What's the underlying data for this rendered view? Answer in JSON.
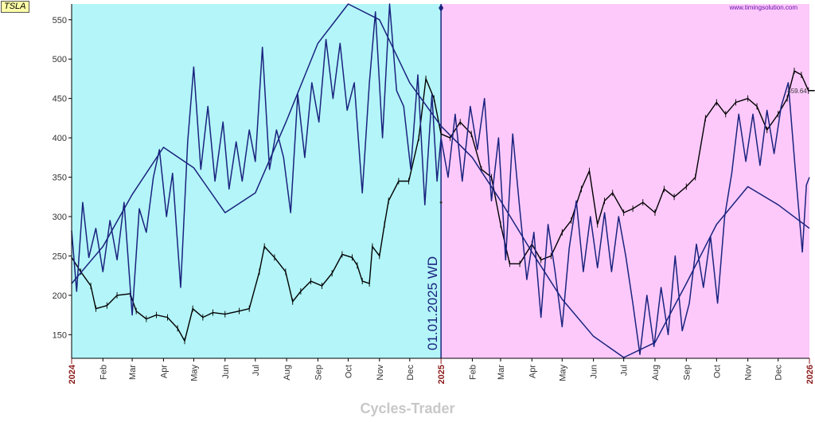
{
  "ticker": "TSLA",
  "watermark": "www.timingsolution.com",
  "footer": "Cycles-Trader",
  "colors": {
    "history_bg": "#b3f5f8",
    "projection_bg": "#fdc9fb",
    "price": "#000000",
    "cycle": "#1a237e",
    "divider": "#1a237e",
    "year_label": "#8b1a1a",
    "watermark": "#6a0dad"
  },
  "chart_data": {
    "type": "line",
    "title": "",
    "xlabel": "",
    "ylabel": "",
    "x_range": [
      "2024-01-01",
      "2026-01-01"
    ],
    "ylim": [
      120,
      570
    ],
    "grid": false,
    "y_ticks": [
      150,
      200,
      250,
      300,
      350,
      400,
      450,
      500,
      550
    ],
    "x_ticks": [
      {
        "label": "2024",
        "date": "2024-01-01",
        "year": true
      },
      {
        "label": "Feb",
        "date": "2024-02-01",
        "year": false
      },
      {
        "label": "Mar",
        "date": "2024-03-01",
        "year": false
      },
      {
        "label": "Apr",
        "date": "2024-04-01",
        "year": false
      },
      {
        "label": "May",
        "date": "2024-05-01",
        "year": false
      },
      {
        "label": "Jun",
        "date": "2024-06-01",
        "year": false
      },
      {
        "label": "Jul",
        "date": "2024-07-01",
        "year": false
      },
      {
        "label": "Aug",
        "date": "2024-08-01",
        "year": false
      },
      {
        "label": "Sep",
        "date": "2024-09-01",
        "year": false
      },
      {
        "label": "Oct",
        "date": "2024-10-01",
        "year": false
      },
      {
        "label": "Nov",
        "date": "2024-11-01",
        "year": false
      },
      {
        "label": "Dec",
        "date": "2024-12-01",
        "year": false
      },
      {
        "label": "2025",
        "date": "2025-01-01",
        "year": true
      },
      {
        "label": "Feb",
        "date": "2025-02-01",
        "year": false
      },
      {
        "label": "Mar",
        "date": "2025-03-01",
        "year": false
      },
      {
        "label": "Apr",
        "date": "2025-04-01",
        "year": false
      },
      {
        "label": "May",
        "date": "2025-05-01",
        "year": false
      },
      {
        "label": "Jun",
        "date": "2025-06-01",
        "year": false
      },
      {
        "label": "Jul",
        "date": "2025-07-01",
        "year": false
      },
      {
        "label": "Aug",
        "date": "2025-08-01",
        "year": false
      },
      {
        "label": "Sep",
        "date": "2025-09-01",
        "year": false
      },
      {
        "label": "Oct",
        "date": "2025-10-01",
        "year": false
      },
      {
        "label": "Nov",
        "date": "2025-11-01",
        "year": false
      },
      {
        "label": "Dec",
        "date": "2025-12-01",
        "year": false
      },
      {
        "label": "2026",
        "date": "2026-01-01",
        "year": true
      }
    ],
    "divider": {
      "date": "2025-01-01",
      "label": "01.01.2025 WD"
    },
    "last_price_label": "459.64",
    "series": [
      {
        "kind": "price",
        "style": "bars",
        "points": [
          [
            "2024-01-01",
            248
          ],
          [
            "2024-01-10",
            230
          ],
          [
            "2024-01-20",
            212
          ],
          [
            "2024-01-25",
            183
          ],
          [
            "2024-02-05",
            187
          ],
          [
            "2024-02-15",
            200
          ],
          [
            "2024-02-28",
            202
          ],
          [
            "2024-03-05",
            180
          ],
          [
            "2024-03-15",
            170
          ],
          [
            "2024-03-25",
            175
          ],
          [
            "2024-04-05",
            172
          ],
          [
            "2024-04-15",
            158
          ],
          [
            "2024-04-22",
            142
          ],
          [
            "2024-04-30",
            183
          ],
          [
            "2024-05-10",
            172
          ],
          [
            "2024-05-20",
            178
          ],
          [
            "2024-06-01",
            176
          ],
          [
            "2024-06-15",
            180
          ],
          [
            "2024-06-25",
            183
          ],
          [
            "2024-07-05",
            230
          ],
          [
            "2024-07-10",
            262
          ],
          [
            "2024-07-20",
            248
          ],
          [
            "2024-07-31",
            230
          ],
          [
            "2024-08-07",
            192
          ],
          [
            "2024-08-15",
            205
          ],
          [
            "2024-08-25",
            218
          ],
          [
            "2024-09-05",
            212
          ],
          [
            "2024-09-15",
            228
          ],
          [
            "2024-09-25",
            252
          ],
          [
            "2024-10-05",
            248
          ],
          [
            "2024-10-10",
            238
          ],
          [
            "2024-10-15",
            218
          ],
          [
            "2024-10-22",
            215
          ],
          [
            "2024-10-25",
            262
          ],
          [
            "2024-11-01",
            250
          ],
          [
            "2024-11-06",
            290
          ],
          [
            "2024-11-10",
            320
          ],
          [
            "2024-11-20",
            345
          ],
          [
            "2024-11-30",
            345
          ],
          [
            "2024-12-10",
            400
          ],
          [
            "2024-12-17",
            475
          ],
          [
            "2024-12-25",
            450
          ],
          [
            "2025-01-01",
            405
          ],
          [
            "2025-01-10",
            400
          ],
          [
            "2025-01-20",
            420
          ],
          [
            "2025-01-31",
            405
          ],
          [
            "2025-02-10",
            360
          ],
          [
            "2025-02-20",
            350
          ],
          [
            "2025-03-01",
            290
          ],
          [
            "2025-03-10",
            240
          ],
          [
            "2025-03-20",
            240
          ],
          [
            "2025-04-01",
            265
          ],
          [
            "2025-04-10",
            245
          ],
          [
            "2025-04-20",
            250
          ],
          [
            "2025-05-01",
            280
          ],
          [
            "2025-05-10",
            295
          ],
          [
            "2025-05-20",
            335
          ],
          [
            "2025-05-28",
            358
          ],
          [
            "2025-06-05",
            290
          ],
          [
            "2025-06-12",
            320
          ],
          [
            "2025-06-20",
            330
          ],
          [
            "2025-07-01",
            305
          ],
          [
            "2025-07-10",
            310
          ],
          [
            "2025-07-20",
            318
          ],
          [
            "2025-08-01",
            305
          ],
          [
            "2025-08-10",
            335
          ],
          [
            "2025-08-20",
            325
          ],
          [
            "2025-09-01",
            338
          ],
          [
            "2025-09-10",
            350
          ],
          [
            "2025-09-20",
            425
          ],
          [
            "2025-10-01",
            445
          ],
          [
            "2025-10-10",
            430
          ],
          [
            "2025-10-20",
            445
          ],
          [
            "2025-11-01",
            450
          ],
          [
            "2025-11-10",
            440
          ],
          [
            "2025-11-20",
            410
          ],
          [
            "2025-12-01",
            430
          ],
          [
            "2025-12-10",
            450
          ],
          [
            "2025-12-17",
            485
          ],
          [
            "2025-12-24",
            480
          ],
          [
            "2025-12-31",
            460
          ]
        ]
      },
      {
        "kind": "cycle_long",
        "style": "line",
        "points": [
          [
            "2024-01-01",
            215
          ],
          [
            "2024-02-01",
            262
          ],
          [
            "2024-03-01",
            328
          ],
          [
            "2024-04-01",
            388
          ],
          [
            "2024-05-01",
            362
          ],
          [
            "2024-06-01",
            305
          ],
          [
            "2024-07-01",
            330
          ],
          [
            "2024-08-01",
            422
          ],
          [
            "2024-09-01",
            520
          ],
          [
            "2024-10-01",
            570
          ],
          [
            "2024-11-01",
            550
          ],
          [
            "2024-12-01",
            470
          ],
          [
            "2025-01-01",
            415
          ],
          [
            "2025-02-01",
            375
          ],
          [
            "2025-03-01",
            320
          ],
          [
            "2025-04-01",
            255
          ],
          [
            "2025-05-01",
            195
          ],
          [
            "2025-06-01",
            148
          ],
          [
            "2025-07-01",
            121
          ],
          [
            "2025-08-01",
            140
          ],
          [
            "2025-09-01",
            215
          ],
          [
            "2025-10-01",
            290
          ],
          [
            "2025-11-01",
            338
          ],
          [
            "2025-12-01",
            315
          ],
          [
            "2026-01-01",
            285
          ]
        ]
      },
      {
        "kind": "cycle_short",
        "style": "line",
        "points": [
          [
            "2024-01-01",
            282
          ],
          [
            "2024-01-06",
            205
          ],
          [
            "2024-01-12",
            318
          ],
          [
            "2024-01-18",
            248
          ],
          [
            "2024-01-25",
            285
          ],
          [
            "2024-02-01",
            230
          ],
          [
            "2024-02-08",
            295
          ],
          [
            "2024-02-15",
            245
          ],
          [
            "2024-02-22",
            318
          ],
          [
            "2024-03-01",
            175
          ],
          [
            "2024-03-08",
            310
          ],
          [
            "2024-03-15",
            280
          ],
          [
            "2024-03-22",
            350
          ],
          [
            "2024-03-28",
            385
          ],
          [
            "2024-04-04",
            300
          ],
          [
            "2024-04-10",
            355
          ],
          [
            "2024-04-18",
            210
          ],
          [
            "2024-04-25",
            395
          ],
          [
            "2024-05-01",
            490
          ],
          [
            "2024-05-08",
            360
          ],
          [
            "2024-05-15",
            440
          ],
          [
            "2024-05-22",
            345
          ],
          [
            "2024-05-30",
            420
          ],
          [
            "2024-06-05",
            335
          ],
          [
            "2024-06-12",
            395
          ],
          [
            "2024-06-18",
            345
          ],
          [
            "2024-06-25",
            410
          ],
          [
            "2024-07-01",
            370
          ],
          [
            "2024-07-08",
            515
          ],
          [
            "2024-07-15",
            360
          ],
          [
            "2024-07-22",
            410
          ],
          [
            "2024-07-29",
            375
          ],
          [
            "2024-08-05",
            305
          ],
          [
            "2024-08-12",
            455
          ],
          [
            "2024-08-19",
            375
          ],
          [
            "2024-08-26",
            470
          ],
          [
            "2024-09-02",
            420
          ],
          [
            "2024-09-09",
            525
          ],
          [
            "2024-09-16",
            450
          ],
          [
            "2024-09-23",
            520
          ],
          [
            "2024-09-30",
            435
          ],
          [
            "2024-10-07",
            470
          ],
          [
            "2024-10-15",
            330
          ],
          [
            "2024-10-22",
            470
          ],
          [
            "2024-10-28",
            560
          ],
          [
            "2024-11-04",
            400
          ],
          [
            "2024-11-11",
            570
          ],
          [
            "2024-11-18",
            460
          ],
          [
            "2024-11-25",
            440
          ],
          [
            "2024-12-02",
            360
          ],
          [
            "2024-12-09",
            480
          ],
          [
            "2024-12-16",
            315
          ],
          [
            "2024-12-23",
            455
          ],
          [
            "2024-12-28",
            345
          ],
          [
            "2025-01-01",
            400
          ],
          [
            "2025-01-08",
            350
          ],
          [
            "2025-01-15",
            430
          ],
          [
            "2025-01-22",
            345
          ],
          [
            "2025-01-30",
            440
          ],
          [
            "2025-02-06",
            385
          ],
          [
            "2025-02-13",
            450
          ],
          [
            "2025-02-20",
            320
          ],
          [
            "2025-02-27",
            400
          ],
          [
            "2025-03-06",
            245
          ],
          [
            "2025-03-13",
            405
          ],
          [
            "2025-03-20",
            310
          ],
          [
            "2025-03-27",
            220
          ],
          [
            "2025-04-03",
            280
          ],
          [
            "2025-04-10",
            172
          ],
          [
            "2025-04-17",
            290
          ],
          [
            "2025-04-24",
            230
          ],
          [
            "2025-05-01",
            160
          ],
          [
            "2025-05-08",
            260
          ],
          [
            "2025-05-15",
            320
          ],
          [
            "2025-05-22",
            230
          ],
          [
            "2025-05-29",
            300
          ],
          [
            "2025-06-05",
            235
          ],
          [
            "2025-06-12",
            305
          ],
          [
            "2025-06-19",
            230
          ],
          [
            "2025-06-26",
            300
          ],
          [
            "2025-07-03",
            250
          ],
          [
            "2025-07-10",
            190
          ],
          [
            "2025-07-17",
            125
          ],
          [
            "2025-07-24",
            200
          ],
          [
            "2025-07-31",
            135
          ],
          [
            "2025-08-07",
            210
          ],
          [
            "2025-08-14",
            150
          ],
          [
            "2025-08-21",
            250
          ],
          [
            "2025-08-28",
            155
          ],
          [
            "2025-09-04",
            190
          ],
          [
            "2025-09-11",
            265
          ],
          [
            "2025-09-18",
            210
          ],
          [
            "2025-09-25",
            275
          ],
          [
            "2025-10-02",
            190
          ],
          [
            "2025-10-09",
            300
          ],
          [
            "2025-10-16",
            355
          ],
          [
            "2025-10-23",
            430
          ],
          [
            "2025-10-30",
            370
          ],
          [
            "2025-11-06",
            430
          ],
          [
            "2025-11-13",
            365
          ],
          [
            "2025-11-20",
            435
          ],
          [
            "2025-11-27",
            380
          ],
          [
            "2025-12-04",
            440
          ],
          [
            "2025-12-11",
            470
          ],
          [
            "2025-12-18",
            360
          ],
          [
            "2025-12-25",
            255
          ],
          [
            "2025-12-29",
            340
          ],
          [
            "2026-01-01",
            350
          ]
        ]
      }
    ]
  }
}
